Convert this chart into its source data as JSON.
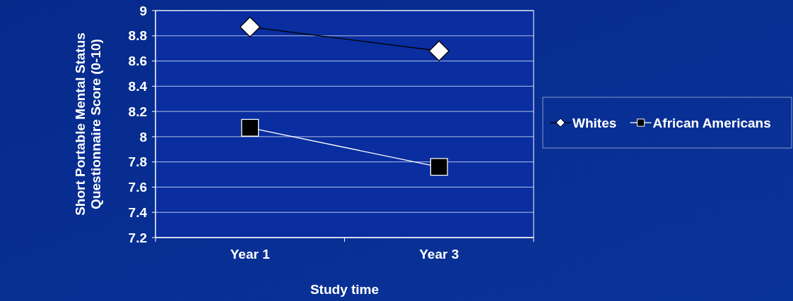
{
  "chart_data": {
    "type": "line",
    "xlabel": "Study time",
    "ylabel": "Short Portable Mental Status\nQuestionnaire Score (0-10)",
    "categories": [
      "Year 1",
      "Year 3"
    ],
    "series": [
      {
        "name": "Whites",
        "color": "#ffffff",
        "marker": "diamond",
        "values": [
          8.87,
          8.68
        ]
      },
      {
        "name": "African Americans",
        "color": "#000000",
        "marker": "square",
        "values": [
          8.07,
          7.76
        ]
      }
    ],
    "ylim": [
      7.2,
      9
    ],
    "yticks": [
      7.2,
      7.4,
      7.6,
      7.8,
      8,
      8.2,
      8.4,
      8.6,
      8.8,
      9
    ],
    "grid": "y",
    "legend": "right"
  }
}
